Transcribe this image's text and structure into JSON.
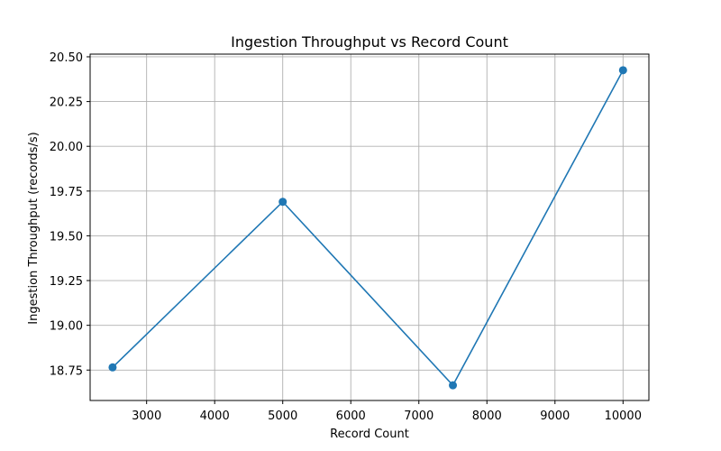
{
  "chart_data": {
    "type": "line",
    "title": "Ingestion Throughput vs Record Count",
    "xlabel": "Record Count",
    "ylabel": "Ingestion Throughput (records/s)",
    "xlim": [
      2170,
      10380
    ],
    "ylim": [
      18.58,
      20.515
    ],
    "xticks": [
      3000,
      4000,
      5000,
      6000,
      7000,
      8000,
      9000,
      10000
    ],
    "yticks": [
      18.75,
      19.0,
      19.25,
      19.5,
      19.75,
      20.0,
      20.25,
      20.5
    ],
    "xtick_labels": [
      "3000",
      "4000",
      "5000",
      "6000",
      "7000",
      "8000",
      "9000",
      "10000"
    ],
    "ytick_labels": [
      "18.75",
      "19.00",
      "19.25",
      "19.50",
      "19.75",
      "20.00",
      "20.25",
      "20.50"
    ],
    "grid": true,
    "series": [
      {
        "color": "#1f77b4",
        "marker": "circle",
        "x": [
          2500,
          5000,
          7500,
          10000
        ],
        "y": [
          18.765,
          19.69,
          18.665,
          20.425
        ]
      }
    ]
  }
}
